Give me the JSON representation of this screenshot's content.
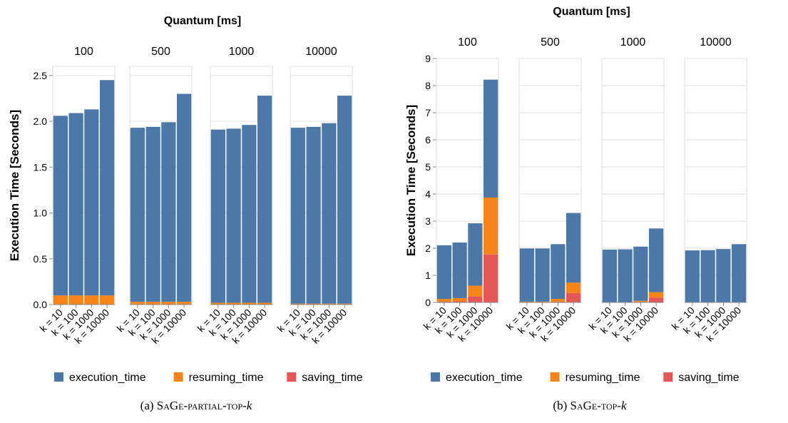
{
  "colors": {
    "execution_time": "#4c78a8",
    "resuming_time": "#f58518",
    "saving_time": "#e45756"
  },
  "chart_data": [
    {
      "type": "bar",
      "stacked": true,
      "faceted_by": "Quantum [ms]",
      "facet_title": "Quantum [ms]",
      "facets": [
        "100",
        "500",
        "1000",
        "10000"
      ],
      "categories": [
        "k = 10",
        "k = 100",
        "k = 1000",
        "k = 10000"
      ],
      "ylabel": "Execution Time [Seconds]",
      "ylim": [
        0,
        2.6
      ],
      "yticks": [
        "0.0",
        "0.5",
        "1.0",
        "1.5",
        "2.0",
        "2.5"
      ],
      "grid": true,
      "legend": "bottom",
      "series_names": [
        "execution_time",
        "resuming_time",
        "saving_time"
      ],
      "values": [
        {
          "facet": "100",
          "execution_time": [
            1.96,
            1.99,
            2.03,
            2.35
          ],
          "resuming_time": [
            0.1,
            0.1,
            0.1,
            0.1
          ],
          "saving_time": [
            0.0,
            0.0,
            0.0,
            0.0
          ]
        },
        {
          "facet": "500",
          "execution_time": [
            1.9,
            1.91,
            1.96,
            2.27
          ],
          "resuming_time": [
            0.03,
            0.03,
            0.03,
            0.03
          ],
          "saving_time": [
            0.0,
            0.0,
            0.0,
            0.0
          ]
        },
        {
          "facet": "1000",
          "execution_time": [
            1.89,
            1.9,
            1.94,
            2.26
          ],
          "resuming_time": [
            0.02,
            0.02,
            0.02,
            0.02
          ],
          "saving_time": [
            0.0,
            0.0,
            0.0,
            0.0
          ]
        },
        {
          "facet": "10000",
          "execution_time": [
            1.92,
            1.93,
            1.97,
            2.27
          ],
          "resuming_time": [
            0.01,
            0.01,
            0.01,
            0.01
          ],
          "saving_time": [
            0.0,
            0.0,
            0.0,
            0.0
          ]
        }
      ],
      "caption_label": "(a) ",
      "caption_name": "SaGe-partial-top-",
      "caption_var": "k"
    },
    {
      "type": "bar",
      "stacked": true,
      "faceted_by": "Quantum [ms]",
      "facet_title": "Quantum [ms]",
      "facets": [
        "100",
        "500",
        "1000",
        "10000"
      ],
      "categories": [
        "k = 10",
        "k = 100",
        "k = 1000",
        "k = 10000"
      ],
      "ylabel": "Execution Time [Seconds]",
      "ylim": [
        0,
        9
      ],
      "yticks": [
        "0",
        "1",
        "2",
        "3",
        "4",
        "5",
        "6",
        "7",
        "8",
        "9"
      ],
      "grid": true,
      "legend": "bottom",
      "series_names": [
        "execution_time",
        "resuming_time",
        "saving_time"
      ],
      "values": [
        {
          "facet": "100",
          "execution_time": [
            1.98,
            2.05,
            2.3,
            4.35
          ],
          "resuming_time": [
            0.1,
            0.12,
            0.4,
            2.1
          ],
          "saving_time": [
            0.03,
            0.04,
            0.22,
            1.77
          ]
        },
        {
          "facet": "500",
          "execution_time": [
            1.96,
            1.96,
            2.02,
            2.57
          ],
          "resuming_time": [
            0.02,
            0.02,
            0.1,
            0.38
          ],
          "saving_time": [
            0.01,
            0.01,
            0.03,
            0.35
          ]
        },
        {
          "facet": "1000",
          "execution_time": [
            1.94,
            1.95,
            2.0,
            2.35
          ],
          "resuming_time": [
            0.01,
            0.01,
            0.04,
            0.2
          ],
          "saving_time": [
            0.0,
            0.0,
            0.02,
            0.18
          ]
        },
        {
          "facet": "10000",
          "execution_time": [
            1.92,
            1.93,
            1.96,
            2.14
          ],
          "resuming_time": [
            0.0,
            0.0,
            0.01,
            0.01
          ],
          "saving_time": [
            0.0,
            0.0,
            0.0,
            0.0
          ]
        }
      ],
      "caption_label": "(b) ",
      "caption_name": "SaGe-top-",
      "caption_var": "k"
    }
  ]
}
